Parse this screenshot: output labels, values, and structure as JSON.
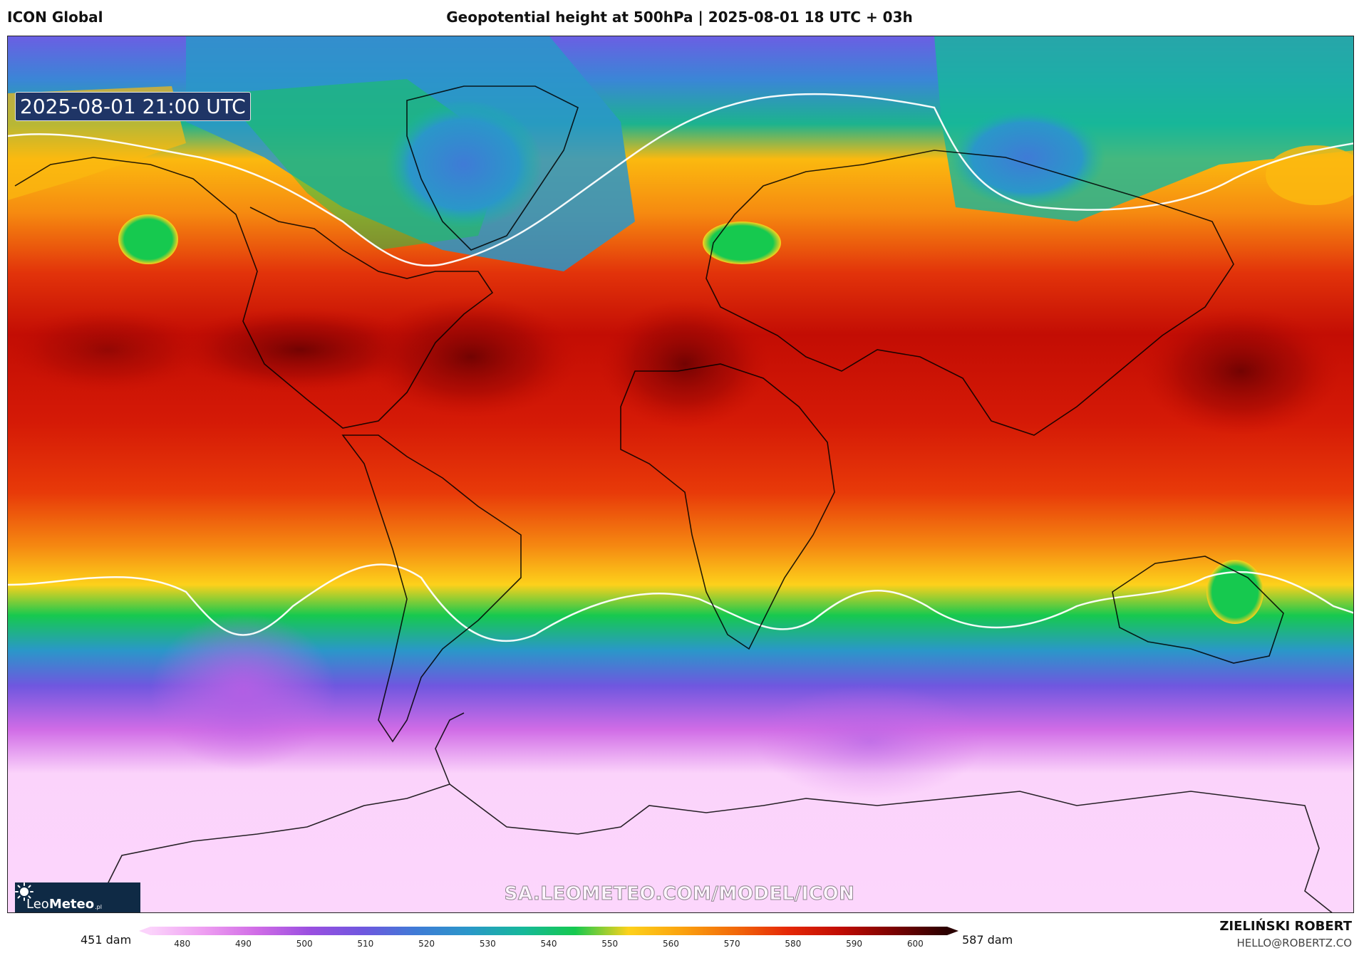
{
  "header": {
    "model": "ICON Global",
    "title": "Geopotential height at 500hPa | 2025-08-01 18 UTC + 03h"
  },
  "map": {
    "valid_time": "2025-08-01 21:00 UTC",
    "watermark": "SA.LEOMETEO.COM/MODEL/ICON",
    "logo": {
      "name_part1": "Leo",
      "name_part2": "Meteo",
      "suffix": ".pl"
    }
  },
  "colorbar": {
    "min_label": "451 dam",
    "max_label": "587 dam",
    "ticks": [
      "480",
      "490",
      "500",
      "510",
      "520",
      "530",
      "540",
      "550",
      "560",
      "570",
      "580",
      "590",
      "600"
    ],
    "colors": [
      "#fbd3fb",
      "#ee9ef1",
      "#d06ce6",
      "#9a4fe0",
      "#6f57df",
      "#3f7bd6",
      "#2a97c9",
      "#16b89b",
      "#16c94f",
      "#fdd11b",
      "#fba30f",
      "#f26a0a",
      "#e52807",
      "#c00c03",
      "#7a0202",
      "#2a0000"
    ]
  },
  "credit": {
    "author": "ZIELIŃSKI ROBERT",
    "email": "HELLO@ROBERTZ.CO"
  }
}
